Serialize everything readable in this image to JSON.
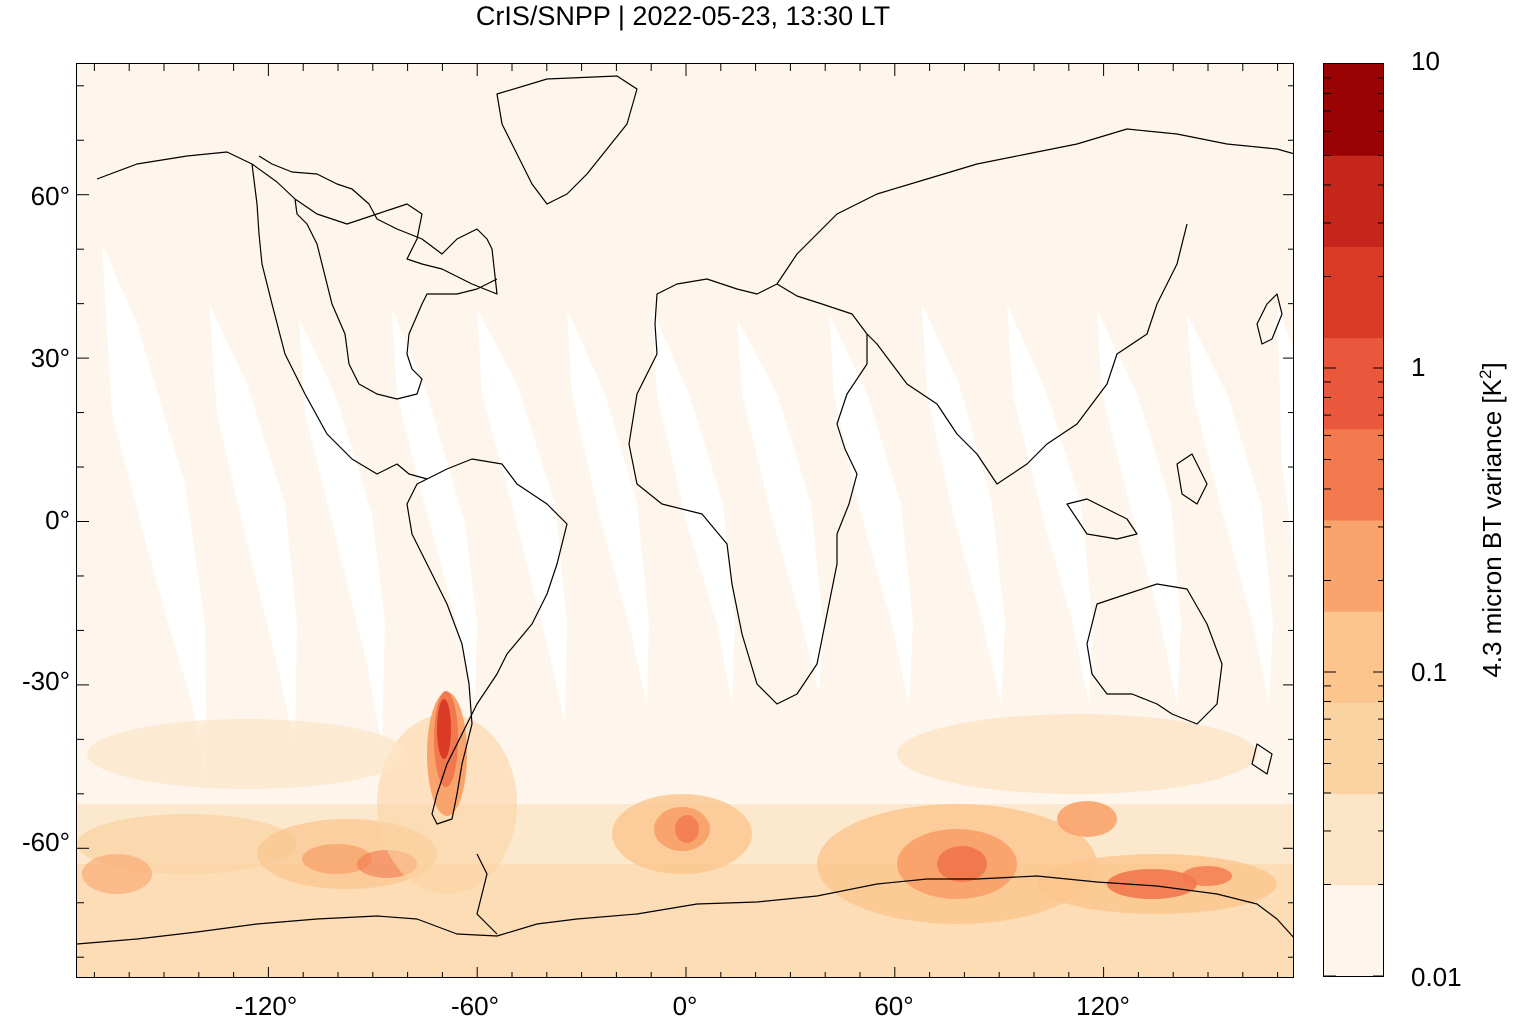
{
  "title": "CrIS/SNPP | 2022-05-23, 13:30 LT",
  "map": {
    "projection": "equirectangular",
    "lon_range": [
      -175,
      175
    ],
    "lat_range": [
      -84,
      84
    ],
    "lat_ticks": [
      "60°",
      "30°",
      "0°",
      "-30°",
      "-60°"
    ],
    "lon_ticks": [
      "-120°",
      "-60°",
      "0°",
      "60°",
      "120°"
    ],
    "coastlines": "black",
    "features": "Elevated 4.3 micron BT variance over the southern Andes and the Southern Ocean; white gaps between satellite orbit swaths at low latitudes"
  },
  "colorbar": {
    "label_main": "4.3 micron BT variance [K",
    "label_sup": "2",
    "label_end": "]",
    "scale": "log",
    "range": [
      0.01,
      10
    ],
    "tick_labels": [
      "10",
      "1",
      "0.1",
      "0.01"
    ],
    "colors": [
      "#fef6ec",
      "#fce5c7",
      "#fbd3a3",
      "#fbc58d",
      "#f9a46c",
      "#f2784e",
      "#e9573c",
      "#d93b26",
      "#c4261b",
      "#9a0303"
    ]
  }
}
